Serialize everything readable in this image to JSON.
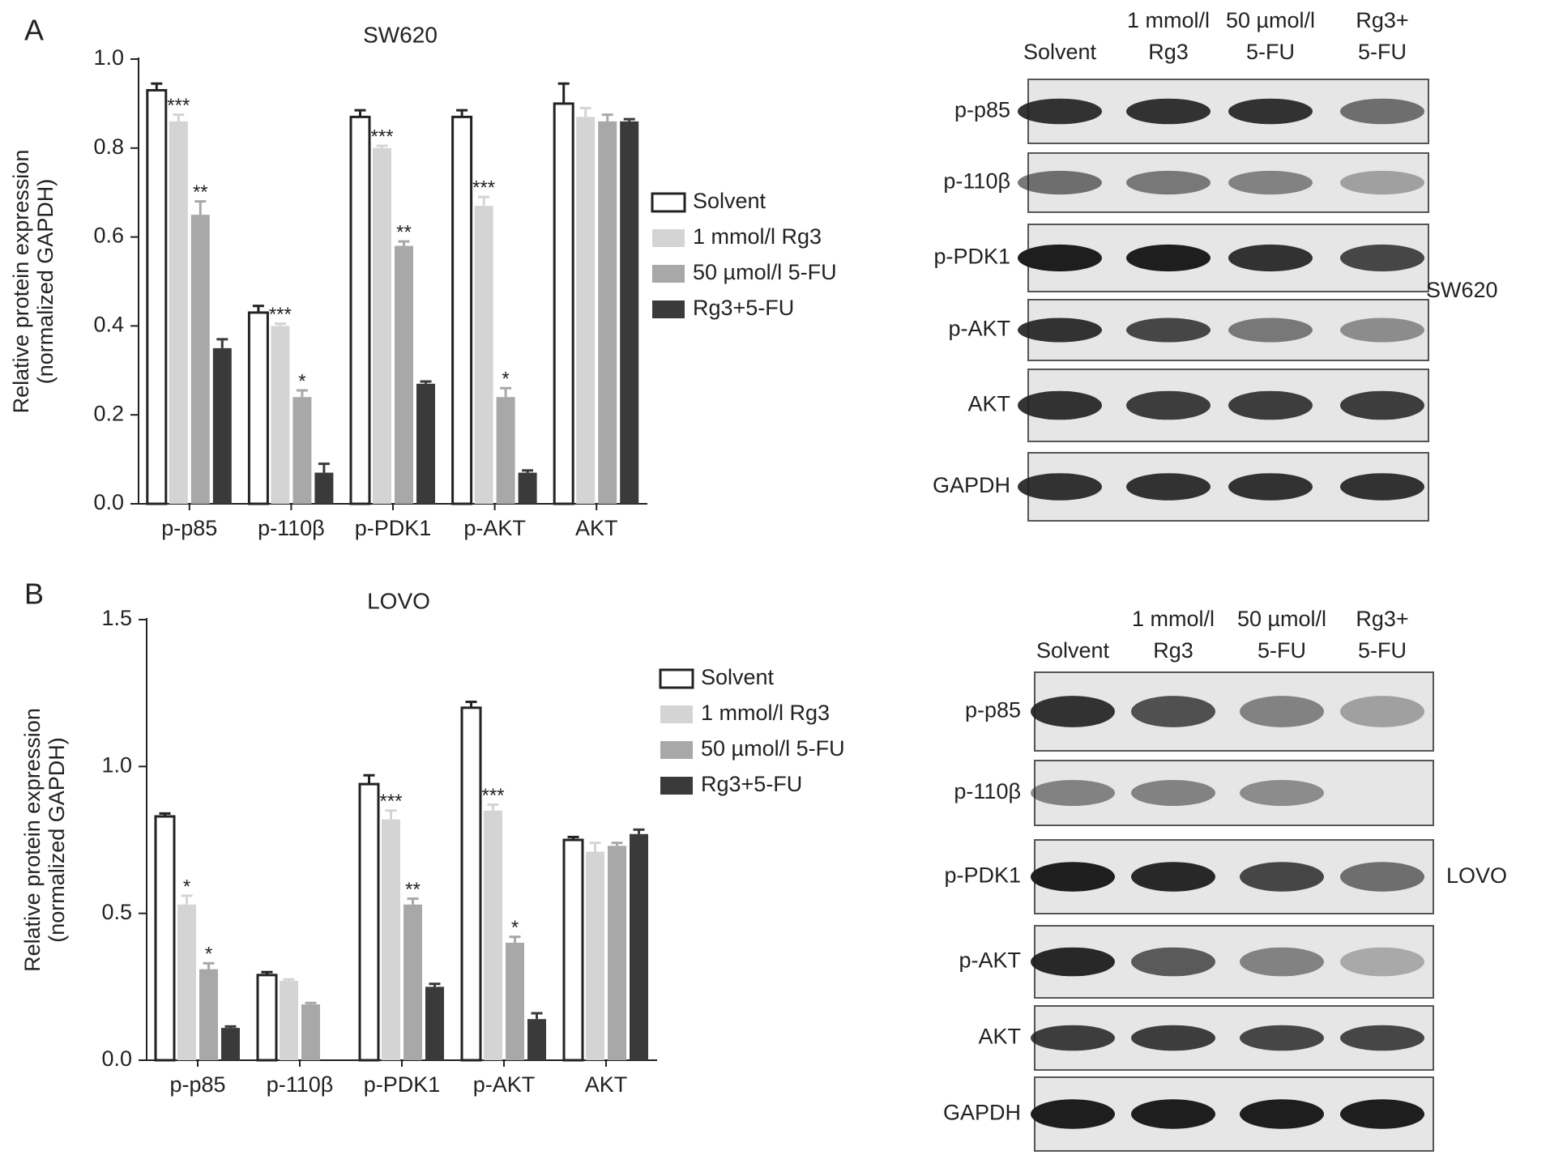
{
  "chart_data": [
    {
      "type": "bar",
      "panel": "A",
      "title": "SW620",
      "y_label": [
        "Relative protein expression",
        "(normalized GAPDH)"
      ],
      "categories": [
        "p-p85",
        "p-110β",
        "p-PDK1",
        "p-AKT",
        "AKT"
      ],
      "ylim": [
        0,
        1.0
      ],
      "yticks": [
        {
          "value": 0,
          "label": "0.0"
        },
        0.2,
        0.4,
        0.6,
        0.8,
        {
          "value": 1,
          "label": "1.0"
        }
      ],
      "series": [
        {
          "name": "Solvent",
          "color": "#ffffff",
          "values": [
            0.93,
            0.43,
            0.87,
            0.87,
            0.9
          ],
          "errors": [
            0.015,
            0.015,
            0.015,
            0.015,
            0.045
          ],
          "annotations": [
            null,
            null,
            null,
            null,
            null
          ]
        },
        {
          "name": "1 mmol/l Rg3",
          "color": "#d4d4d4",
          "values": [
            0.86,
            0.4,
            0.8,
            0.67,
            0.87
          ],
          "errors": [
            0.015,
            0.005,
            0.005,
            0.02,
            0.02
          ],
          "annotations": [
            "***",
            "***",
            "***",
            "***",
            null
          ]
        },
        {
          "name": "50 µmol/l 5-FU",
          "color": "#a8a8a8",
          "values": [
            0.65,
            0.24,
            0.58,
            0.24,
            0.86
          ],
          "errors": [
            0.03,
            0.015,
            0.01,
            0.02,
            0.015
          ],
          "annotations": [
            "**",
            "*",
            "**",
            "*",
            null
          ]
        },
        {
          "name": "Rg3+5-FU",
          "color": "#3a3a3a",
          "values": [
            0.35,
            0.07,
            0.27,
            0.07,
            0.86
          ],
          "errors": [
            0.02,
            0.02,
            0.005,
            0.005,
            0.005
          ],
          "annotations": [
            null,
            null,
            null,
            null,
            null
          ]
        }
      ]
    },
    {
      "type": "bar",
      "panel": "B",
      "title": "LOVO",
      "y_label": [
        "Relative protein expression",
        "(normalized GAPDH)"
      ],
      "categories": [
        "p-p85",
        "p-110β",
        "p-PDK1",
        "p-AKT",
        "AKT"
      ],
      "ylim": [
        0,
        1.5
      ],
      "yticks": [
        {
          "value": 0,
          "label": "0.0"
        },
        0.5,
        {
          "value": 1,
          "label": "1.0"
        },
        1.5
      ],
      "series": [
        {
          "name": "Solvent",
          "color": "#ffffff",
          "values": [
            0.83,
            0.29,
            0.94,
            1.2,
            0.75
          ],
          "errors": [
            0.01,
            0.01,
            0.03,
            0.02,
            0.01
          ],
          "annotations": [
            null,
            null,
            null,
            null,
            null
          ]
        },
        {
          "name": "1 mmol/l Rg3",
          "color": "#d4d4d4",
          "values": [
            0.53,
            0.27,
            0.82,
            0.85,
            0.71
          ],
          "errors": [
            0.03,
            0.005,
            0.03,
            0.02,
            0.03
          ],
          "annotations": [
            "*",
            null,
            "***",
            "***",
            null
          ]
        },
        {
          "name": "50 µmol/l 5-FU",
          "color": "#a8a8a8",
          "values": [
            0.31,
            0.19,
            0.53,
            0.4,
            0.73
          ],
          "errors": [
            0.02,
            0.005,
            0.02,
            0.02,
            0.01
          ],
          "annotations": [
            "*",
            null,
            "**",
            "*",
            null
          ]
        },
        {
          "name": "Rg3+5-FU",
          "color": "#3a3a3a",
          "values": [
            0.11,
            null,
            0.25,
            0.14,
            0.77
          ],
          "errors": [
            0.005,
            null,
            0.01,
            0.02,
            0.015
          ],
          "annotations": [
            null,
            null,
            null,
            null,
            null
          ]
        }
      ]
    }
  ],
  "blots": [
    {
      "cell_line": "SW620",
      "lanes": [
        [
          "Solvent"
        ],
        [
          "1 mmol/l",
          "Rg3"
        ],
        [
          "50 µmol/l",
          "5-FU"
        ],
        [
          "Rg3+",
          "5-FU"
        ]
      ],
      "rows": [
        "p-p85",
        "p-110β",
        "p-PDK1",
        "p-AKT",
        "AKT",
        "GAPDH"
      ]
    },
    {
      "cell_line": "LOVO",
      "lanes": [
        [
          "Solvent"
        ],
        [
          "1 mmol/l",
          "Rg3"
        ],
        [
          "50 µmol/l",
          "5-FU"
        ],
        [
          "Rg3+",
          "5-FU"
        ]
      ],
      "rows": [
        "p-p85",
        "p-110β",
        "p-PDK1",
        "p-AKT",
        "AKT",
        "GAPDH"
      ]
    }
  ]
}
